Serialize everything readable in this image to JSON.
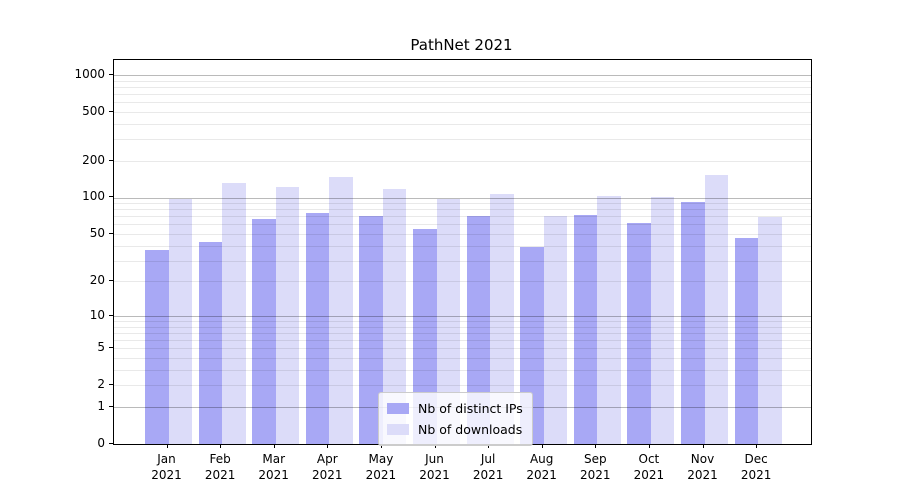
{
  "title": "PathNet 2021",
  "chart_data": {
    "type": "bar",
    "title": "PathNet 2021",
    "categories": [
      "Jan 2021",
      "Feb 2021",
      "Mar 2021",
      "Apr 2021",
      "May 2021",
      "Jun 2021",
      "Jul 2021",
      "Aug 2021",
      "Sep 2021",
      "Oct 2021",
      "Nov 2021",
      "Dec 2021"
    ],
    "series": [
      {
        "name": "Nb of distinct IPs",
        "color": "#a8a8f5",
        "values": [
          37,
          43,
          66,
          75,
          70,
          55,
          70,
          39,
          72,
          62,
          91,
          46
        ]
      },
      {
        "name": "Nb of downloads",
        "color": "#dcdcf9",
        "values": [
          97,
          132,
          123,
          148,
          117,
          97,
          107,
          71,
          103,
          101,
          152,
          69
        ]
      }
    ],
    "xlabel": "",
    "ylabel": "",
    "yscale": "symlog",
    "ylim": [
      0,
      1300
    ],
    "y_ticks": [
      1000,
      500,
      200,
      100,
      50,
      20,
      10,
      5,
      2,
      1,
      0
    ],
    "grid": true,
    "grid_above_bars": true,
    "legend_position": "lower center",
    "colors": {
      "minor_grid": "#e9e9e9",
      "major_grid": "#bdbdbd",
      "spine": "#000000",
      "legend_border": "#cccccc"
    }
  }
}
